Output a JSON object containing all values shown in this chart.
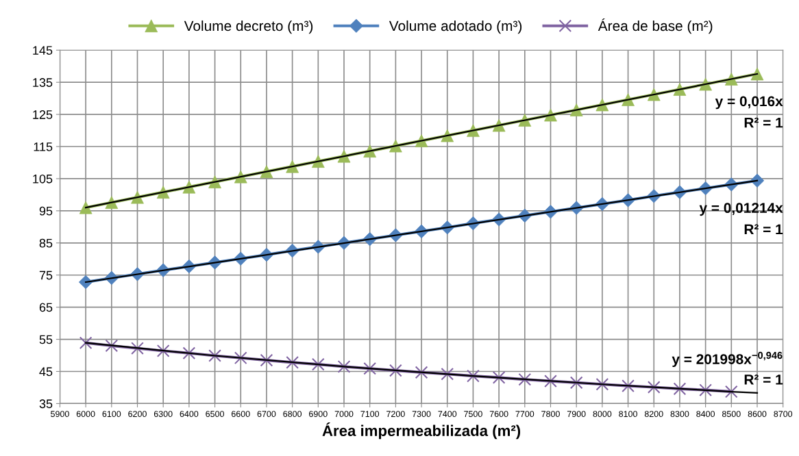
{
  "chart_data": {
    "type": "line",
    "xlabel": "Área impermeabilizada (m²)",
    "xlim": [
      5900,
      8700
    ],
    "xticks": [
      5900,
      6000,
      6100,
      6200,
      6300,
      6400,
      6500,
      6600,
      6700,
      6800,
      6900,
      7000,
      7100,
      7200,
      7300,
      7400,
      7500,
      7600,
      7700,
      7800,
      7900,
      8000,
      8100,
      8200,
      8300,
      8400,
      8500,
      8600,
      8700
    ],
    "ylim": [
      35,
      145
    ],
    "yticks": [
      35,
      45,
      55,
      65,
      75,
      85,
      95,
      105,
      115,
      125,
      135,
      145
    ],
    "grid": true,
    "legend": "top",
    "series": [
      {
        "name": "Volume decreto (m³)",
        "color": "#9bbb59",
        "marker": "triangle",
        "x": [
          6000,
          6100,
          6200,
          6300,
          6400,
          6500,
          6600,
          6700,
          6800,
          6900,
          7000,
          7100,
          7200,
          7300,
          7400,
          7500,
          7600,
          7700,
          7800,
          7900,
          8000,
          8100,
          8200,
          8300,
          8400,
          8500,
          8600
        ],
        "values": [
          96,
          97.6,
          99.2,
          100.8,
          102.4,
          104,
          105.6,
          107.2,
          108.8,
          110.4,
          112,
          113.6,
          115.2,
          116.8,
          118.4,
          120,
          121.6,
          123.2,
          124.8,
          126.4,
          128,
          129.6,
          131.2,
          132.8,
          134.4,
          136,
          137.6
        ]
      },
      {
        "name": "Volume adotado (m³)",
        "color": "#4f81bd",
        "marker": "diamond",
        "x": [
          6000,
          6100,
          6200,
          6300,
          6400,
          6500,
          6600,
          6700,
          6800,
          6900,
          7000,
          7100,
          7200,
          7300,
          7400,
          7500,
          7600,
          7700,
          7800,
          7900,
          8000,
          8100,
          8200,
          8300,
          8400,
          8500,
          8600
        ],
        "values": [
          72.8,
          74.1,
          75.3,
          76.5,
          77.7,
          78.9,
          80.1,
          81.3,
          82.6,
          83.8,
          85.0,
          86.2,
          87.4,
          88.6,
          89.8,
          91.1,
          92.3,
          93.5,
          94.7,
          95.9,
          97.1,
          98.3,
          99.6,
          100.8,
          102.0,
          103.2,
          104.4
        ]
      },
      {
        "name": "Área de base (m²)",
        "color": "#8064a2",
        "marker": "cross",
        "x": [
          6000,
          6100,
          6200,
          6300,
          6400,
          6500,
          6600,
          6700,
          6800,
          6900,
          7000,
          7100,
          7200,
          7300,
          7400,
          7500,
          7600,
          7700,
          7800,
          7900,
          8000,
          8100,
          8200,
          8300,
          8400,
          8500
        ],
        "values": [
          53.9,
          53.0,
          52.2,
          51.4,
          50.7,
          49.9,
          49.2,
          48.5,
          47.8,
          47.2,
          46.5,
          45.9,
          45.3,
          44.7,
          44.2,
          43.6,
          43.1,
          42.5,
          42.0,
          41.5,
          41.0,
          40.5,
          40.1,
          39.6,
          39.2,
          38.7
        ]
      },
      {
        "type": "line",
        "color": "#000000",
        "marker": "none",
        "x": [
          6000,
          8600
        ],
        "values": [
          96,
          137.6
        ]
      },
      {
        "type": "line",
        "color": "#000000",
        "marker": "none",
        "x": [
          6000,
          8600
        ],
        "values": [
          72.8,
          104.4
        ]
      },
      {
        "type": "line",
        "color": "#000000",
        "marker": "none",
        "x": [
          6000,
          6500,
          7000,
          7500,
          8000,
          8500,
          8600
        ],
        "values": [
          53.9,
          49.9,
          46.5,
          43.6,
          41.0,
          38.7,
          38.3
        ]
      }
    ],
    "annotations": [
      "y = 0,016x",
      "R² = 1",
      "y = 0,01214x",
      "R² = 1",
      "y = 201998x$^{−0,946}$",
      "R² = 1"
    ]
  }
}
